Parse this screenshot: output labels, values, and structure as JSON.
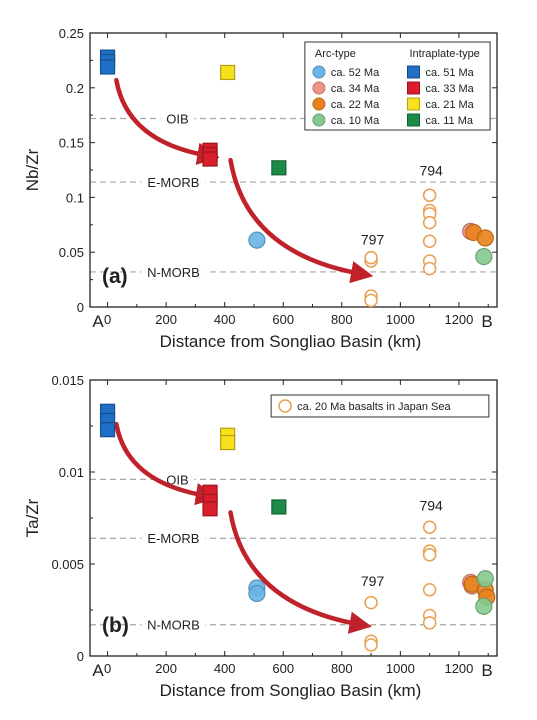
{
  "chart_data": [
    {
      "type": "scatter",
      "panel_label": "(a)",
      "ylabel": "Nb/Zr",
      "xlabel": "Distance from Songliao Basin (km)",
      "xlim": [
        -60,
        1330
      ],
      "ylim": [
        0,
        0.25
      ],
      "x_ticks": [
        0,
        200,
        400,
        600,
        800,
        1000,
        1200
      ],
      "y_ticks": [
        0,
        0.05,
        0.1,
        0.15,
        0.2,
        0.25
      ],
      "y_tick_labels": [
        "0",
        "0.05",
        "0.1",
        "0.15",
        "0.2",
        "0.25"
      ],
      "x_end_labels": {
        "left": "A",
        "right": "B"
      },
      "reference_lines": [
        {
          "label": "OIB",
          "y": 0.172
        },
        {
          "label": "E-MORB",
          "y": 0.114
        },
        {
          "label": "N-MORB",
          "y": 0.032
        }
      ],
      "legend": {
        "position": "top-right",
        "groups": [
          {
            "title": "Arc-type",
            "shape": "circle",
            "entries": [
              {
                "name": "ca. 52 Ma",
                "color": "#6ab4e6"
              },
              {
                "name": "ca. 34 Ma",
                "color": "#ec9488"
              },
              {
                "name": "ca. 22 Ma",
                "color": "#e8821c"
              },
              {
                "name": "ca. 10 Ma",
                "color": "#84c98f"
              }
            ]
          },
          {
            "title": "Intraplate-type",
            "shape": "square",
            "entries": [
              {
                "name": "ca. 51 Ma",
                "color": "#1f6fc6"
              },
              {
                "name": "ca. 33 Ma",
                "color": "#d81e2a"
              },
              {
                "name": "ca. 21 Ma",
                "color": "#f7e11c"
              },
              {
                "name": "ca. 11 Ma",
                "color": "#1e8a48"
              }
            ]
          }
        ]
      },
      "annotations": [
        {
          "text": "797",
          "x": 905,
          "y": 0.057
        },
        {
          "text": "794",
          "x": 1105,
          "y": 0.12
        }
      ],
      "arrows": [
        {
          "from": [
            30,
            0.207
          ],
          "to": [
            345,
            0.138
          ]
        },
        {
          "from": [
            420,
            0.134
          ],
          "to": [
            870,
            0.03
          ]
        }
      ],
      "series": [
        {
          "name": "ca. 51 Ma",
          "marker": "square",
          "color": "#1f6fc6",
          "x": [
            0,
            0,
            0
          ],
          "y": [
            0.228,
            0.224,
            0.219
          ]
        },
        {
          "name": "ca. 33 Ma",
          "marker": "square",
          "color": "#d81e2a",
          "x": [
            350,
            350,
            350
          ],
          "y": [
            0.143,
            0.139,
            0.135
          ]
        },
        {
          "name": "ca. 21 Ma",
          "marker": "square",
          "color": "#f7e11c",
          "x": [
            410
          ],
          "y": [
            0.214
          ]
        },
        {
          "name": "ca. 11 Ma",
          "marker": "square",
          "color": "#1e8a48",
          "x": [
            585
          ],
          "y": [
            0.127
          ]
        },
        {
          "name": "ca. 52 Ma",
          "marker": "circle",
          "color": "#6ab4e6",
          "x": [
            510
          ],
          "y": [
            0.061
          ]
        },
        {
          "name": "ca. 34 Ma",
          "marker": "circle",
          "color": "#ec9488",
          "x": [
            1240
          ],
          "y": [
            0.069
          ]
        },
        {
          "name": "ca. 22 Ma",
          "marker": "circle",
          "color": "#e8821c",
          "x": [
            1250,
            1290
          ],
          "y": [
            0.068,
            0.063
          ]
        },
        {
          "name": "ca. 10 Ma",
          "marker": "circle",
          "color": "#84c98f",
          "x": [
            1285
          ],
          "y": [
            0.046
          ]
        },
        {
          "name": "ca. 20 Ma basalts in Japan Sea",
          "marker": "open-circle",
          "color": "#e8a050",
          "x": [
            900,
            900,
            900,
            900,
            1100,
            1100,
            1100,
            1100,
            1100,
            1100,
            1100
          ],
          "y": [
            0.042,
            0.045,
            0.01,
            0.006,
            0.102,
            0.088,
            0.085,
            0.06,
            0.042,
            0.035,
            0.077
          ]
        }
      ]
    },
    {
      "type": "scatter",
      "panel_label": "(b)",
      "ylabel": "Ta/Zr",
      "xlabel": "Distance from Songliao Basin (km)",
      "xlim": [
        -60,
        1330
      ],
      "ylim": [
        0,
        0.015
      ],
      "x_ticks": [
        0,
        200,
        400,
        600,
        800,
        1000,
        1200
      ],
      "y_ticks": [
        0,
        0.005,
        0.01,
        0.015
      ],
      "y_tick_labels": [
        "0",
        "0.005",
        "0.01",
        "0.015"
      ],
      "x_end_labels": {
        "left": "A",
        "right": "B"
      },
      "reference_lines": [
        {
          "label": "OIB",
          "y": 0.0096
        },
        {
          "label": "E-MORB",
          "y": 0.0064
        },
        {
          "label": "N-MORB",
          "y": 0.0017
        }
      ],
      "legend": {
        "position": "top-right",
        "entries": [
          {
            "name": "ca. 20 Ma basalts in Japan Sea",
            "shape": "open-circle",
            "color": "#e8a050"
          }
        ]
      },
      "annotations": [
        {
          "text": "797",
          "x": 905,
          "y": 0.0038
        },
        {
          "text": "794",
          "x": 1105,
          "y": 0.0079
        }
      ],
      "arrows": [
        {
          "from": [
            30,
            0.0126
          ],
          "to": [
            340,
            0.0087
          ]
        },
        {
          "from": [
            420,
            0.0078
          ],
          "to": [
            865,
            0.0017
          ]
        }
      ],
      "series": [
        {
          "name": "ca. 51 Ma",
          "marker": "square",
          "color": "#1f6fc6",
          "x": [
            0,
            0,
            0
          ],
          "y": [
            0.0133,
            0.0128,
            0.0123
          ]
        },
        {
          "name": "ca. 33 Ma",
          "marker": "square",
          "color": "#d81e2a",
          "x": [
            350,
            350,
            350
          ],
          "y": [
            0.0089,
            0.0084,
            0.008
          ]
        },
        {
          "name": "ca. 21 Ma",
          "marker": "square",
          "color": "#f7e11c",
          "x": [
            410,
            410
          ],
          "y": [
            0.012,
            0.0116
          ]
        },
        {
          "name": "ca. 11 Ma",
          "marker": "square",
          "color": "#1e8a48",
          "x": [
            585
          ],
          "y": [
            0.0081
          ]
        },
        {
          "name": "ca. 52 Ma",
          "marker": "circle",
          "color": "#6ab4e6",
          "x": [
            510,
            510
          ],
          "y": [
            0.0037,
            0.0034
          ]
        },
        {
          "name": "ca. 34 Ma",
          "marker": "circle",
          "color": "#ec9488",
          "x": [
            1240,
            1245
          ],
          "y": [
            0.004,
            0.0038
          ]
        },
        {
          "name": "ca. 22 Ma",
          "marker": "circle",
          "color": "#e8821c",
          "x": [
            1245,
            1290,
            1295
          ],
          "y": [
            0.0039,
            0.0036,
            0.0032
          ]
        },
        {
          "name": "ca. 10 Ma",
          "marker": "circle",
          "color": "#84c98f",
          "x": [
            1290,
            1285
          ],
          "y": [
            0.0042,
            0.0027
          ]
        },
        {
          "name": "ca. 20 Ma basalts in Japan Sea",
          "marker": "open-circle",
          "color": "#e8a050",
          "x": [
            900,
            900,
            900,
            1100,
            1100,
            1100,
            1100,
            1100,
            1100
          ],
          "y": [
            0.0029,
            0.0008,
            0.0006,
            0.007,
            0.0057,
            0.0055,
            0.0036,
            0.0022,
            0.0018
          ]
        }
      ]
    }
  ]
}
